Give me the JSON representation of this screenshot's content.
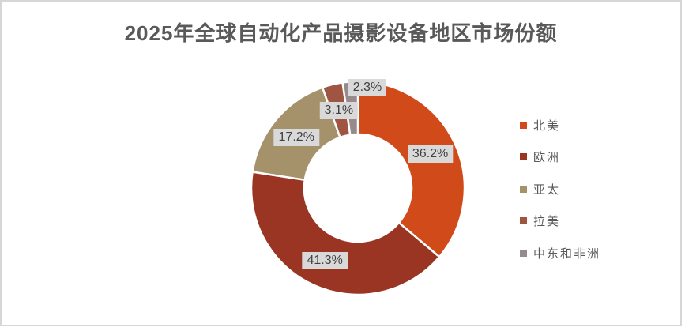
{
  "chart_data": {
    "type": "pie",
    "subtype": "doughnut",
    "title": "2025年全球自动化产品摄影设备地区市场份额",
    "categories": [
      "北美",
      "欧洲",
      "亚太",
      "拉美",
      "中东和非洲"
    ],
    "values": [
      36.2,
      41.3,
      17.2,
      3.1,
      2.3
    ],
    "data_labels": [
      "36.2%",
      "41.3%",
      "17.2%",
      "3.1%",
      "2.3%"
    ],
    "colors": [
      "#D14A1A",
      "#9A3423",
      "#A5916A",
      "#9E5542",
      "#968A8A"
    ],
    "legend_position": "right",
    "label_background": "#D9D9D9",
    "label_text_color": "#404040",
    "title_color": "#595959",
    "legend_text_color": "#595959"
  }
}
